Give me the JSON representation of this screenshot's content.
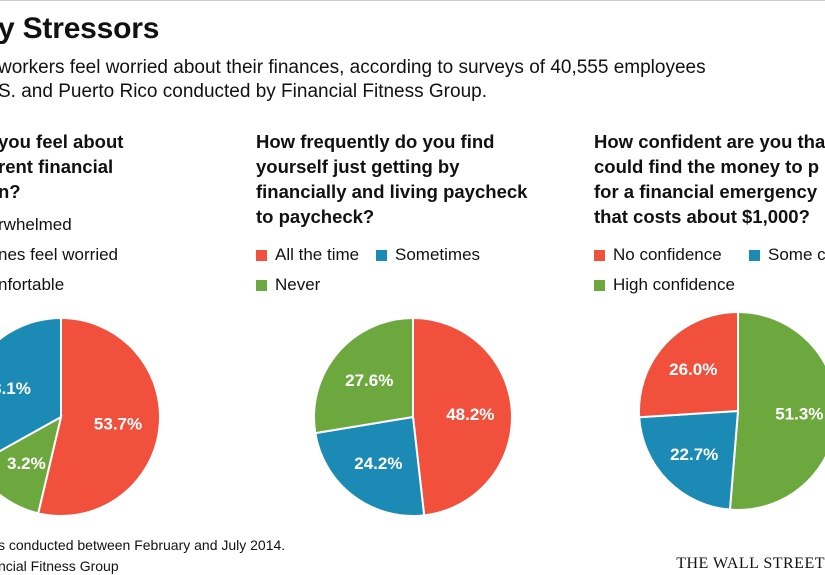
{
  "title": "y Stressors",
  "subtitle_line1": "workers feel worried about their finances, according to surveys of 40,555 employees",
  "subtitle_line2": "S. and Puerto Rico conducted by Financial Fitness Group.",
  "colors": {
    "red": "#F0503C",
    "blue": "#1B8AB5",
    "green": "#6DA83F"
  },
  "chart_data": [
    {
      "type": "pie",
      "title_lines": [
        "you feel about",
        "rent financial",
        "n?"
      ],
      "legend": [
        {
          "label": "rwhelmed",
          "color": "#F0503C"
        },
        {
          "label": "nes feel worried",
          "color": "#1B8AB5"
        },
        {
          "label": "nfortable",
          "color": "#6DA83F"
        }
      ],
      "slices": [
        {
          "label": "53.7%",
          "value": 53.7,
          "color": "#F0503C"
        },
        {
          "label": "3.2%",
          "value": 13.2,
          "color": "#6DA83F"
        },
        {
          "label": "3.1%",
          "value": 33.1,
          "color": "#1B8AB5"
        }
      ]
    },
    {
      "type": "pie",
      "title_lines": [
        "How frequently do you find",
        "yourself just getting by",
        "financially and living paycheck",
        "to paycheck?"
      ],
      "legend": [
        {
          "label": "All the time",
          "color": "#F0503C"
        },
        {
          "label": "Sometimes",
          "color": "#1B8AB5"
        },
        {
          "label": "Never",
          "color": "#6DA83F"
        }
      ],
      "slices": [
        {
          "label": "48.2%",
          "value": 48.2,
          "color": "#F0503C"
        },
        {
          "label": "24.2%",
          "value": 24.2,
          "color": "#1B8AB5"
        },
        {
          "label": "27.6%",
          "value": 27.6,
          "color": "#6DA83F"
        }
      ]
    },
    {
      "type": "pie",
      "title_lines": [
        "How confident are you tha",
        "could find the money to p",
        "for a financial emergency",
        "that costs about $1,000?"
      ],
      "legend": [
        {
          "label": "No confidence",
          "color": "#F0503C"
        },
        {
          "label": "Some co",
          "color": "#1B8AB5"
        },
        {
          "label": "High confidence",
          "color": "#6DA83F"
        }
      ],
      "slices": [
        {
          "label": "51.3%",
          "value": 51.3,
          "color": "#6DA83F"
        },
        {
          "label": "22.7%",
          "value": 22.7,
          "color": "#1B8AB5"
        },
        {
          "label": "26.0%",
          "value": 26.0,
          "color": "#F0503C"
        }
      ]
    }
  ],
  "footnote": "s conducted between February and July 2014.",
  "source": "ncial Fitness Group",
  "publisher": "THE WALL STREET"
}
